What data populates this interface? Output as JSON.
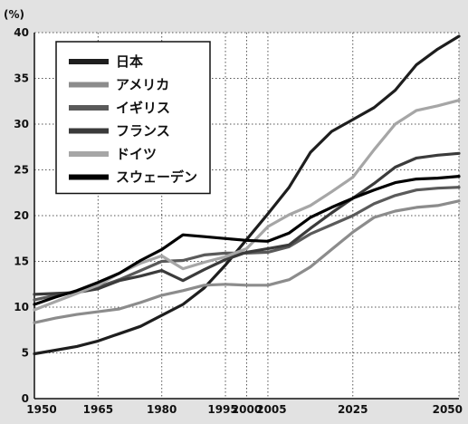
{
  "chart_data": {
    "type": "line",
    "ylabel": "(%)",
    "ylim": [
      0,
      40
    ],
    "y_ticks": [
      0,
      5,
      10,
      15,
      20,
      25,
      30,
      35,
      40
    ],
    "x_ticks": [
      "1950",
      "1965",
      "1980",
      "1995",
      "2000",
      "2005",
      "2025",
      "2050"
    ],
    "x_tick_values": [
      1950,
      1965,
      1980,
      1995,
      2000,
      2005,
      2025,
      2050
    ],
    "x_grid": [
      1950,
      1965,
      1980,
      1995,
      2000,
      2005,
      2025,
      2050
    ],
    "xlim": [
      1950,
      2050
    ],
    "grid": true,
    "legend_position": "top-left",
    "series": [
      {
        "name": "日本",
        "color": "#1e1e1e",
        "x": [
          1950,
          1955,
          1960,
          1965,
          1970,
          1975,
          1980,
          1985,
          1990,
          1995,
          2000,
          2005,
          2010,
          2015,
          2020,
          2025,
          2030,
          2035,
          2040,
          2045,
          2050
        ],
        "y": [
          4.9,
          5.3,
          5.7,
          6.3,
          7.1,
          7.9,
          9.1,
          10.3,
          12.1,
          14.6,
          17.4,
          20.2,
          23.1,
          26.9,
          29.2,
          30.5,
          31.8,
          33.7,
          36.5,
          38.2,
          39.6
        ]
      },
      {
        "name": "アメリカ",
        "color": "#8c8c8c",
        "x": [
          1950,
          1955,
          1960,
          1965,
          1970,
          1975,
          1980,
          1985,
          1990,
          1995,
          2000,
          2005,
          2010,
          2015,
          2020,
          2025,
          2030,
          2035,
          2040,
          2045,
          2050
        ],
        "y": [
          8.3,
          8.8,
          9.2,
          9.5,
          9.8,
          10.5,
          11.3,
          11.8,
          12.4,
          12.5,
          12.4,
          12.4,
          13.0,
          14.4,
          16.3,
          18.2,
          19.8,
          20.5,
          20.9,
          21.1,
          21.6
        ]
      },
      {
        "name": "イギリス",
        "color": "#5a5a5a",
        "x": [
          1950,
          1955,
          1960,
          1965,
          1970,
          1975,
          1980,
          1985,
          1990,
          1995,
          2000,
          2005,
          2010,
          2015,
          2020,
          2025,
          2030,
          2035,
          2040,
          2045,
          2050
        ],
        "y": [
          10.8,
          11.3,
          11.7,
          12.2,
          13.0,
          14.0,
          15.0,
          15.1,
          15.7,
          15.9,
          15.9,
          16.0,
          16.6,
          18.0,
          19.0,
          20.0,
          21.3,
          22.2,
          22.8,
          23.0,
          23.1
        ]
      },
      {
        "name": "フランス",
        "color": "#3b3b3b",
        "x": [
          1950,
          1955,
          1960,
          1965,
          1970,
          1975,
          1980,
          1985,
          1990,
          1995,
          2000,
          2005,
          2010,
          2015,
          2020,
          2025,
          2030,
          2035,
          2040,
          2045,
          2050
        ],
        "y": [
          11.4,
          11.5,
          11.6,
          12.0,
          12.9,
          13.4,
          14.0,
          12.9,
          14.1,
          15.2,
          16.0,
          16.4,
          16.8,
          18.6,
          20.3,
          21.9,
          23.5,
          25.3,
          26.3,
          26.6,
          26.8
        ]
      },
      {
        "name": "ドイツ",
        "color": "#a6a6a6",
        "x": [
          1950,
          1955,
          1960,
          1965,
          1970,
          1975,
          1980,
          1985,
          1990,
          1995,
          2000,
          2005,
          2010,
          2015,
          2020,
          2025,
          2030,
          2035,
          2040,
          2045,
          2050
        ],
        "y": [
          9.7,
          10.6,
          11.5,
          12.4,
          13.7,
          14.8,
          15.6,
          14.2,
          14.9,
          15.5,
          16.4,
          18.8,
          20.1,
          21.1,
          22.6,
          24.2,
          27.2,
          30.0,
          31.5,
          32.0,
          32.6
        ]
      },
      {
        "name": "スウェーデン",
        "color": "#000000",
        "x": [
          1950,
          1955,
          1960,
          1965,
          1970,
          1975,
          1980,
          1985,
          1990,
          1995,
          2000,
          2005,
          2010,
          2015,
          2020,
          2025,
          2030,
          2035,
          2040,
          2045,
          2050
        ],
        "y": [
          10.3,
          11.1,
          11.8,
          12.7,
          13.7,
          15.1,
          16.3,
          17.9,
          17.7,
          17.5,
          17.3,
          17.2,
          18.1,
          19.8,
          20.9,
          21.9,
          22.8,
          23.6,
          24.0,
          24.1,
          24.3
        ]
      }
    ]
  }
}
